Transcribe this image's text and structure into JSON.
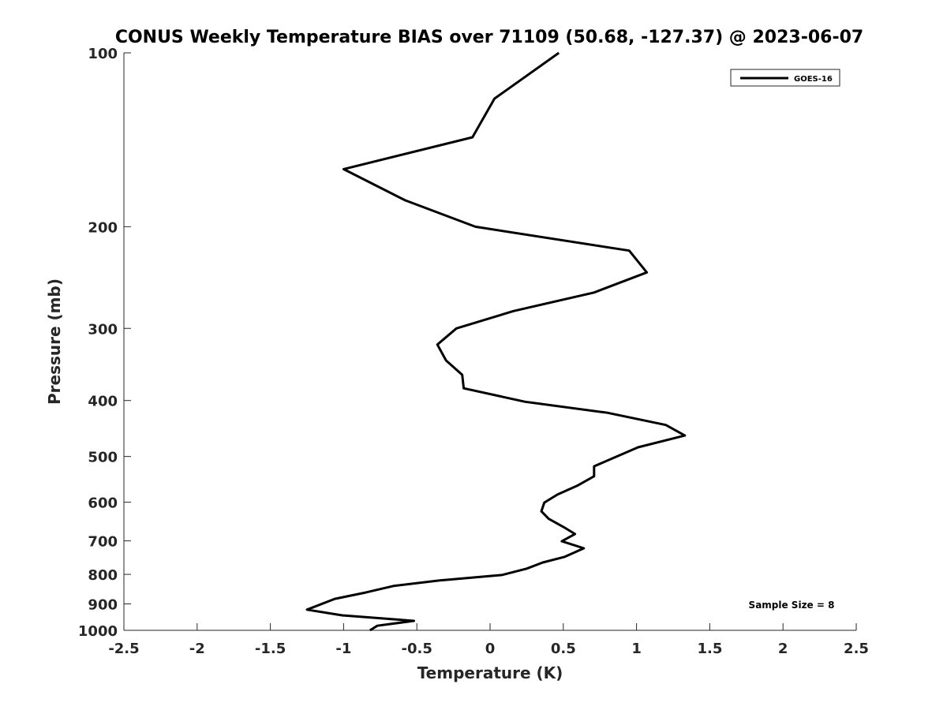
{
  "chart_data": {
    "type": "line",
    "title": "CONUS Weekly Temperature BIAS over 71109 (50.68, -127.37) @ 2023-06-07",
    "xlabel": "Temperature (K)",
    "ylabel": "Pressure (mb)",
    "xlim": [
      -2.5,
      2.5
    ],
    "ylim": [
      100,
      1000
    ],
    "yscale": "log",
    "yreversed": true,
    "grid": false,
    "legend_position": "top-right",
    "xticks": [
      -2.5,
      -2,
      -1.5,
      -1,
      -0.5,
      0,
      0.5,
      1,
      1.5,
      2,
      2.5
    ],
    "xtick_labels": [
      "-2.5",
      "-2",
      "-1.5",
      "-1",
      "-0.5",
      "0",
      "0.5",
      "1",
      "1.5",
      "2",
      "2.5"
    ],
    "yticks": [
      100,
      200,
      300,
      400,
      500,
      600,
      700,
      800,
      900,
      1000
    ],
    "ytick_labels": [
      "100",
      "200",
      "300",
      "400",
      "500",
      "600",
      "700",
      "800",
      "900",
      "1000"
    ],
    "annotation": "Sample Size = 8",
    "series": [
      {
        "name": "GOES-16",
        "color": "#000000",
        "x": [
          0.47,
          0.03,
          -0.12,
          -1.0,
          -0.58,
          -0.1,
          0.95,
          1.07,
          0.71,
          0.16,
          -0.23,
          -0.36,
          -0.3,
          -0.19,
          -0.18,
          0.24,
          0.8,
          1.2,
          1.33,
          1.01,
          0.71,
          0.71,
          0.6,
          0.46,
          0.37,
          0.35,
          0.4,
          0.5,
          0.58,
          0.49,
          0.64,
          0.51,
          0.36,
          0.25,
          0.08,
          -0.35,
          -0.66,
          -0.85,
          -1.06,
          -1.25,
          -1.01,
          -0.52,
          -0.77,
          -0.82
        ],
        "y": [
          100,
          120,
          140,
          159,
          180,
          200,
          220,
          240,
          260,
          280,
          300,
          320,
          341,
          361,
          381,
          402,
          420,
          441,
          460,
          482,
          520,
          541,
          561,
          582,
          601,
          622,
          641,
          662,
          681,
          701,
          721,
          746,
          763,
          782,
          802,
          820,
          838,
          860,
          882,
          921,
          942,
          963,
          982,
          1000
        ]
      }
    ]
  }
}
